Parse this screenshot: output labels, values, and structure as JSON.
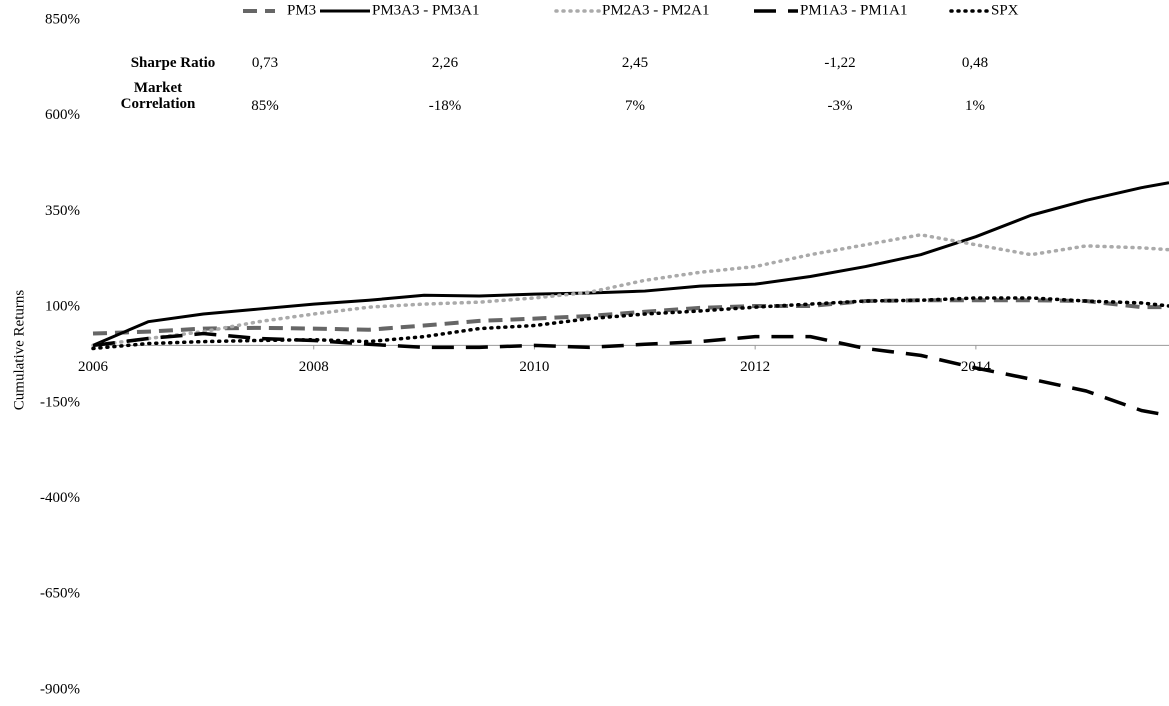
{
  "chart_data": {
    "type": "line",
    "y_label": "Cumulative Returns",
    "x": [
      2006,
      2006.5,
      2007,
      2007.5,
      2008,
      2008.5,
      2009,
      2009.5,
      2010,
      2010.5,
      2011,
      2011.5,
      2012,
      2012.5,
      2013,
      2013.5,
      2014,
      2014.5,
      2015,
      2015.5,
      2015.75
    ],
    "xlim": [
      2006,
      2015.75
    ],
    "xticks": [
      2006,
      2008,
      2010,
      2012,
      2014
    ],
    "ylim": [
      -900,
      850
    ],
    "yticks": [
      {
        "value": -900,
        "label": "-900%"
      },
      {
        "value": -650,
        "label": "-650%"
      },
      {
        "value": -400,
        "label": "-400%"
      },
      {
        "value": -150,
        "label": "-150%"
      },
      {
        "value": 100,
        "label": "100%"
      },
      {
        "value": 350,
        "label": "350%"
      },
      {
        "value": 600,
        "label": "600%"
      },
      {
        "value": 850,
        "label": "850%"
      }
    ],
    "legend": "top",
    "series": [
      {
        "name": "PM3",
        "color": "#666666",
        "dash": "14,8",
        "width": 4,
        "values": [
          31,
          36,
          44,
          46,
          44,
          41,
          52,
          64,
          70,
          77,
          88,
          98,
          103,
          103,
          116,
          118,
          118,
          118,
          116,
          100,
          100
        ]
      },
      {
        "name": "PM3A3 - PM3A1",
        "color": "#000000",
        "dash": "none",
        "width": 3,
        "values": [
          0,
          62,
          82,
          95,
          108,
          118,
          131,
          129,
          134,
          137,
          142,
          155,
          160,
          180,
          206,
          237,
          284,
          340,
          379,
          412,
          425
        ]
      },
      {
        "name": "PM2A3 - PM2A1",
        "color": "#aaaaaa",
        "dash": "1,6",
        "width": 3.5,
        "values": [
          0,
          18,
          36,
          62,
          82,
          100,
          108,
          113,
          124,
          139,
          170,
          191,
          206,
          237,
          263,
          289,
          263,
          237,
          260,
          255,
          250
        ]
      },
      {
        "name": "PM1A3 - PM1A1",
        "color": "#000000",
        "dash": "22,12",
        "width": 3.5,
        "values": [
          0,
          18,
          31,
          18,
          13,
          3,
          -5,
          -5,
          0,
          -5,
          3,
          10,
          23,
          23,
          -8,
          -26,
          -59,
          -88,
          -119,
          -170,
          -183
        ]
      },
      {
        "name": "SPX",
        "color": "#000000",
        "dash": "1,6",
        "width": 3.5,
        "values": [
          -8,
          5,
          10,
          13,
          15,
          10,
          23,
          44,
          52,
          70,
          82,
          90,
          100,
          108,
          116,
          118,
          124,
          124,
          116,
          111,
          103
        ]
      }
    ],
    "table": {
      "rows": [
        {
          "label": "Sharpe Ratio",
          "values": [
            "0,73",
            "2,26",
            "2,45",
            "-1,22",
            "0,48"
          ]
        },
        {
          "label": "Market Correlation",
          "values": [
            "85%",
            "-18%",
            "7%",
            "-3%",
            "1%"
          ]
        }
      ]
    }
  }
}
